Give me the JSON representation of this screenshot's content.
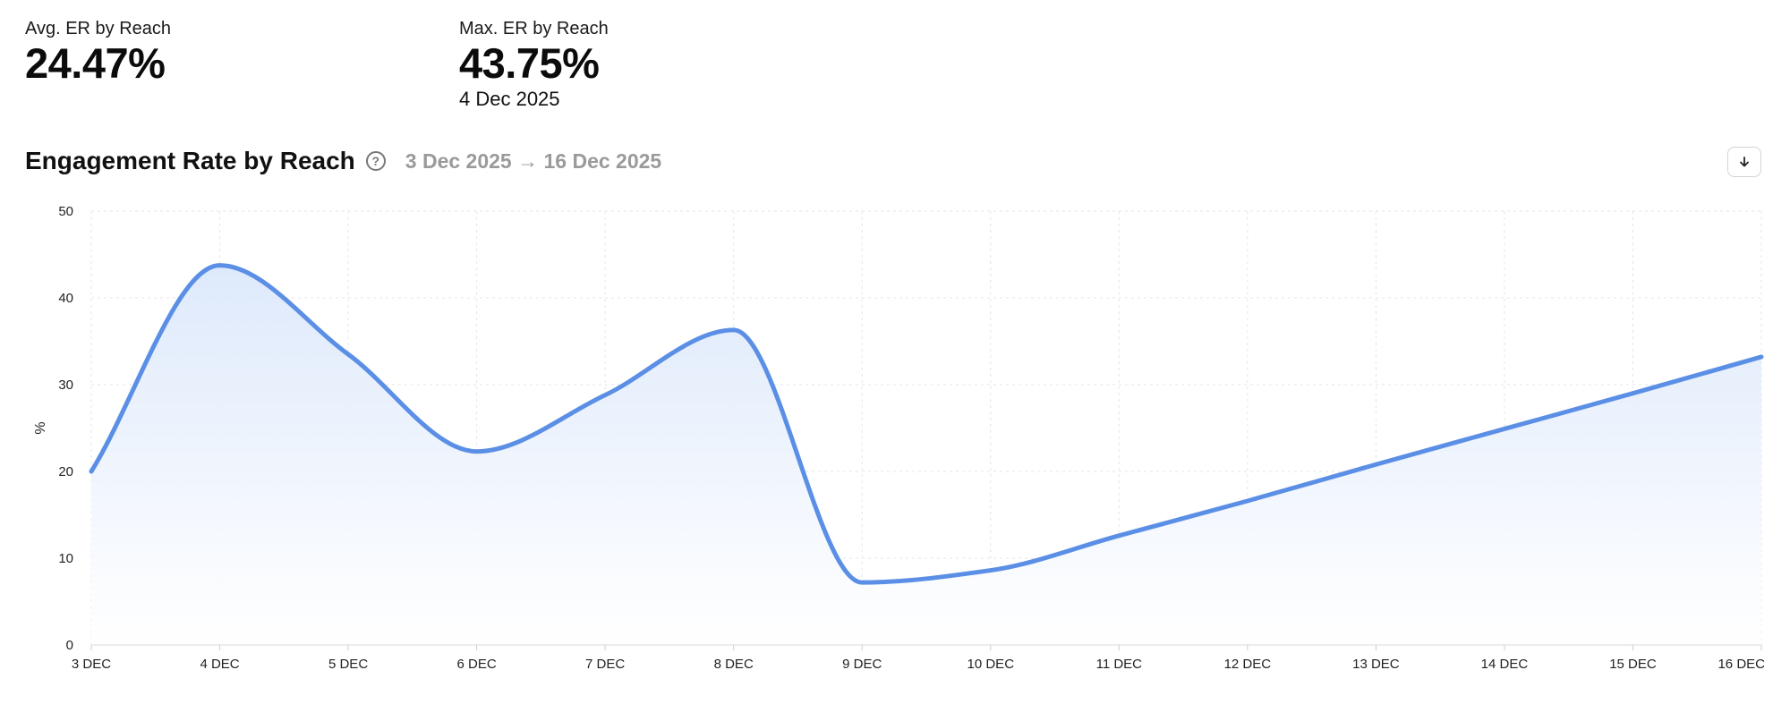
{
  "stats": {
    "avg": {
      "label": "Avg. ER by Reach",
      "value": "24.47%"
    },
    "max": {
      "label": "Max. ER by Reach",
      "value": "43.75%",
      "date": "4 Dec 2025"
    }
  },
  "chart_header": {
    "title": "Engagement Rate by Reach",
    "help_icon": "question-circle-icon",
    "date_range": "3 Dec 2025 → 16 Dec 2025",
    "download_icon": "arrow-down-icon"
  },
  "colors": {
    "line": "#5b8fe6",
    "area_top": "#dce8fb",
    "area_bottom": "#ffffff",
    "grid": "#e6e6e6"
  },
  "chart_data": {
    "type": "area",
    "title": "",
    "xlabel": "",
    "ylabel": "%",
    "ylim": [
      0,
      50
    ],
    "y_ticks": [
      0,
      10,
      20,
      30,
      40,
      50
    ],
    "grid": true,
    "categories": [
      "3 DEC",
      "4 DEC",
      "5 DEC",
      "6 DEC",
      "7 DEC",
      "8 DEC",
      "9 DEC",
      "10 DEC",
      "11 DEC",
      "12 DEC",
      "13 DEC",
      "14 DEC",
      "15 DEC",
      "16 DEC"
    ],
    "series": [
      {
        "values": [
          20.0,
          43.75,
          33.5,
          22.3,
          28.8,
          36.3,
          7.2,
          8.6,
          12.6,
          16.6,
          20.8,
          24.9,
          29.0,
          33.2
        ]
      }
    ]
  }
}
